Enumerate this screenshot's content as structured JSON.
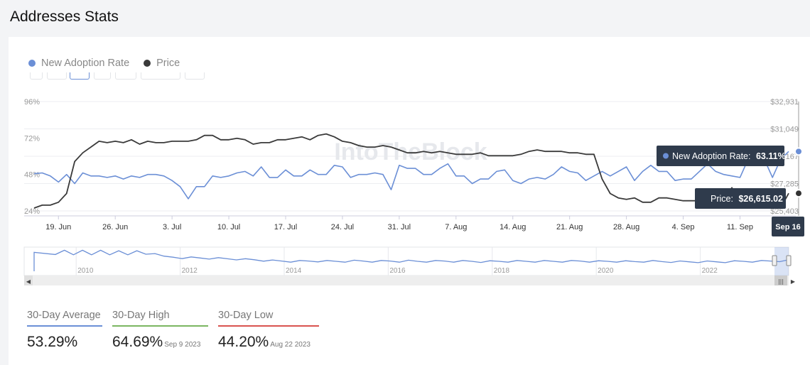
{
  "page": {
    "title": "Addresses Stats"
  },
  "watermark": "IntoTheBlock",
  "legend": [
    {
      "label": "New Adoption Rate",
      "color": "#6b8fd6"
    },
    {
      "label": "Price",
      "color": "#3a3a3a"
    }
  ],
  "tooltips": {
    "adoption": {
      "label": "New Adoption Rate:",
      "value": "63.11%"
    },
    "price": {
      "label": "Price:",
      "value": "$26,615.02"
    },
    "date": "Sep 16"
  },
  "navigator_years": [
    "2010",
    "2012",
    "2014",
    "2016",
    "2018",
    "2020",
    "2022"
  ],
  "stats": [
    {
      "label": "30-Day Average",
      "value": "53.29%",
      "date": "",
      "color": "#6b8fd6"
    },
    {
      "label": "30-Day High",
      "value": "64.69%",
      "date": "Sep 9 2023",
      "color": "#7bb661"
    },
    {
      "label": "30-Day Low",
      "value": "44.20%",
      "date": "Aug 22 2023",
      "color": "#d9534f"
    }
  ],
  "chart_data": {
    "type": "line",
    "x_tick_labels": [
      "19. Jun",
      "26. Jun",
      "3. Jul",
      "10. Jul",
      "17. Jul",
      "24. Jul",
      "31. Jul",
      "7. Aug",
      "14. Aug",
      "21. Aug",
      "28. Aug",
      "4. Sep",
      "11. Sep"
    ],
    "y_left_tick_labels": [
      "24%",
      "48%",
      "72%",
      "96%"
    ],
    "y_left_range": [
      24,
      96
    ],
    "y_right_tick_labels": [
      "$25,403",
      "$27,285",
      "$29,167",
      "$31,049",
      "$32,931"
    ],
    "y_right_range": [
      25403,
      32931
    ],
    "start_date": "2023-06-16",
    "x_range": [
      0,
      93
    ],
    "series": [
      {
        "name": "New Adoption Rate",
        "axis": "left",
        "color": "#6b8fd6",
        "values": [
          48.5,
          49,
          47,
          43,
          48,
          42,
          49,
          47,
          47,
          46,
          47,
          45,
          47,
          46,
          48,
          48,
          47,
          44,
          40,
          32,
          40,
          40,
          47,
          46,
          47,
          49,
          50,
          47,
          53,
          46,
          46,
          51,
          47,
          47,
          51,
          48,
          48,
          54,
          53,
          46,
          48,
          48,
          49,
          48,
          38,
          54,
          52,
          52,
          48,
          48,
          52,
          55,
          47,
          47,
          42,
          45,
          45,
          50,
          51,
          44,
          42,
          45,
          46,
          45,
          48,
          53,
          50,
          49,
          44,
          47,
          50,
          47,
          50,
          53,
          44,
          50,
          54,
          50,
          50,
          44,
          45,
          45,
          50,
          55,
          50,
          48,
          47,
          46,
          58,
          58,
          58,
          46,
          58,
          63.11
        ]
      },
      {
        "name": "Price",
        "axis": "right",
        "values": [
          25600,
          25800,
          25800,
          26000,
          26600,
          28800,
          29400,
          29800,
          30200,
          30100,
          30200,
          30100,
          30300,
          30000,
          30200,
          30100,
          30100,
          30200,
          30200,
          30200,
          30300,
          30600,
          30600,
          30300,
          30300,
          30400,
          30300,
          30000,
          30100,
          30100,
          30300,
          30300,
          30400,
          30500,
          30300,
          30600,
          30700,
          30500,
          30200,
          30100,
          29900,
          29800,
          29800,
          29900,
          29800,
          29600,
          29400,
          29400,
          29500,
          29400,
          29500,
          29400,
          29300,
          29300,
          29300,
          29400,
          29200,
          29200,
          29200,
          29200,
          29300,
          29500,
          29600,
          29500,
          29500,
          29500,
          29400,
          29400,
          29300,
          29300,
          27600,
          26600,
          26300,
          26200,
          26300,
          26000,
          26000,
          26300,
          26300,
          26200,
          26100,
          26100,
          26100,
          26000,
          26100,
          26200,
          27000,
          25900,
          25800,
          25900,
          25900,
          25700,
          25600,
          26615
        ]
      }
    ],
    "navigator": {
      "x_range": [
        2009,
        2023.7
      ],
      "values": [
        85,
        85,
        84,
        85,
        84,
        85,
        84,
        83,
        84,
        83,
        86,
        72,
        67,
        66,
        64,
        64,
        63,
        62,
        61,
        60,
        59,
        57,
        56,
        54,
        52,
        51,
        50,
        50,
        51,
        51,
        50,
        50,
        50,
        51,
        51,
        50,
        50,
        51,
        50,
        51,
        50,
        50,
        50,
        51,
        50,
        50,
        50,
        49,
        49,
        50,
        50,
        50,
        50,
        50,
        50,
        50,
        50,
        50,
        51,
        50,
        49,
        50,
        50,
        49,
        49,
        50,
        50,
        49,
        49,
        48,
        48,
        48,
        48,
        48,
        48,
        49,
        50,
        50,
        50,
        51,
        52,
        53
      ]
    }
  }
}
